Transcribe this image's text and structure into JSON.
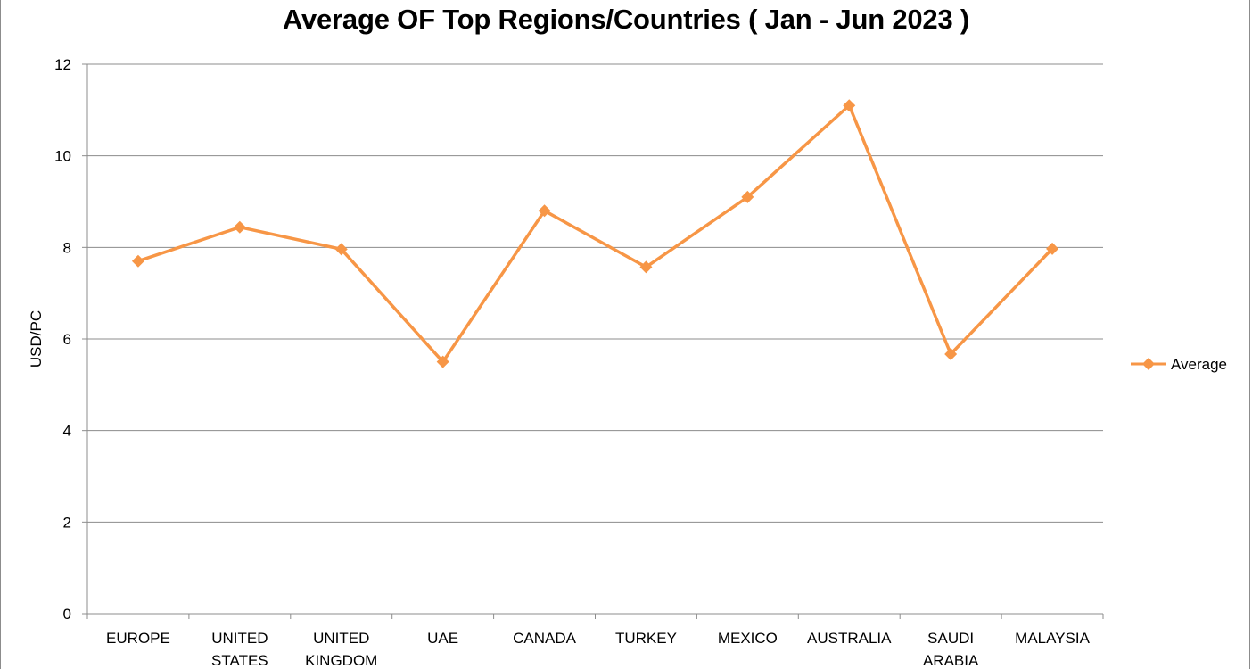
{
  "chart_data": {
    "type": "line",
    "title": "Average OF Top Regions/Countries ( Jan - Jun 2023 )",
    "xlabel": "",
    "ylabel": "USD/PC",
    "ylim": [
      0,
      12
    ],
    "yticks": [
      0,
      2,
      4,
      6,
      8,
      10,
      12
    ],
    "grid": true,
    "legend_position": "right",
    "categories": [
      [
        "EUROPE"
      ],
      [
        "UNITED",
        "STATES"
      ],
      [
        "UNITED",
        "KINGDOM"
      ],
      [
        "UAE"
      ],
      [
        "CANADA"
      ],
      [
        "TURKEY"
      ],
      [
        "MEXICO"
      ],
      [
        "AUSTRALIA"
      ],
      [
        "SAUDI",
        "ARABIA"
      ],
      [
        "MALAYSIA"
      ]
    ],
    "series": [
      {
        "name": "Average",
        "color": "#F79646",
        "marker": "diamond",
        "values": [
          7.7,
          8.44,
          7.96,
          5.5,
          8.8,
          7.57,
          9.1,
          11.1,
          5.67,
          7.97
        ]
      }
    ]
  }
}
